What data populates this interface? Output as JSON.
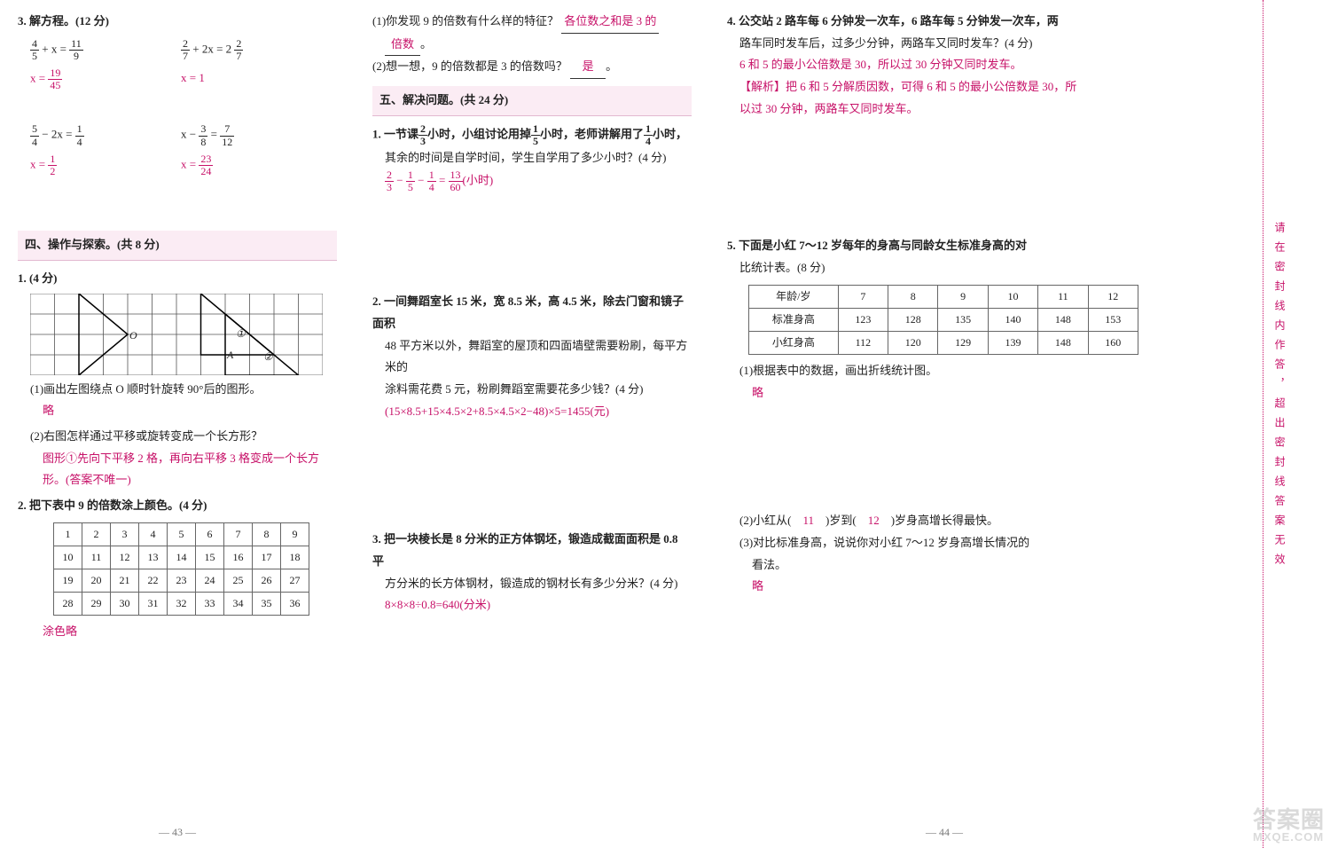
{
  "col1": {
    "q3_title": "3. 解方程。(12 分)",
    "eq1a": "4",
    "eq1b": "5",
    "eq1c": "+ x =",
    "eq1d": "11",
    "eq1e": "9",
    "eq1ans_l": "x =",
    "eq1ans_n": "19",
    "eq1ans_d": "45",
    "eq2a": "2",
    "eq2b": "7",
    "eq2c": " + 2x = 2 ",
    "eq2d": "2",
    "eq2e": "7",
    "eq2ans": "x = 1",
    "eq3a": "5",
    "eq3b": "4",
    "eq3c": " − 2x = ",
    "eq3d": "1",
    "eq3e": "4",
    "eq3ans_l": "x =",
    "eq3ans_n": "1",
    "eq3ans_d": "2",
    "eq4a": "x − ",
    "eq4b": "3",
    "eq4c": "8",
    "eq4d": " = ",
    "eq4e": "7",
    "eq4f": "12",
    "eq4ans_l": "x =",
    "eq4ans_n": "23",
    "eq4ans_d": "24",
    "sec4": "四、操作与探索。(共 8 分)",
    "q1pts": "1. (4 分)",
    "q1_1": "(1)画出左图绕点 O 顺时针旋转 90°后的图形。",
    "q1_1ans": "略",
    "q1_2": "(2)右图怎样通过平移或旋转变成一个长方形？",
    "q1_2ans_a": "图形①先向下平移 2 格，再向右平移 3 格变成一个长方",
    "q1_2ans_b": "形。(答案不唯一)",
    "q2": "2. 把下表中 9 的倍数涂上颜色。(4 分)",
    "t_rows": [
      [
        "1",
        "2",
        "3",
        "4",
        "5",
        "6",
        "7",
        "8",
        "9"
      ],
      [
        "10",
        "11",
        "12",
        "13",
        "14",
        "15",
        "16",
        "17",
        "18"
      ],
      [
        "19",
        "20",
        "21",
        "22",
        "23",
        "24",
        "25",
        "26",
        "27"
      ],
      [
        "28",
        "29",
        "30",
        "31",
        "32",
        "33",
        "34",
        "35",
        "36"
      ]
    ],
    "q2ans": "涂色略",
    "label_O": "O",
    "label_A": "A",
    "label_1": "①",
    "label_2": "②",
    "page": "— 43 —"
  },
  "col2": {
    "l1": "(1)你发现 9 的倍数有什么样的特征？",
    "l1ans": "各位数之和是 3 的",
    "l1ans2": "倍数",
    "l1dot": "。",
    "l2": "(2)想一想，9 的倍数都是 3 的倍数吗？",
    "l2ans": "是",
    "l2dot": "。",
    "sec5": "五、解决问题。(共 24 分)",
    "q1a": "1. 一节课",
    "q1frac1n": "2",
    "q1frac1d": "3",
    "q1b": "小时，小组讨论用掉",
    "q1frac2n": "1",
    "q1frac2d": "5",
    "q1c": "小时，老师讲解用了",
    "q1frac3n": "1",
    "q1frac3d": "4",
    "q1d": "小时，",
    "q1e": "其余的时间是自学时间，学生自学用了多少小时？(4 分)",
    "q1ans_a": "2",
    "q1ans_b": "3",
    "q1ans_c": "1",
    "q1ans_d": "5",
    "q1ans_e": "1",
    "q1ans_f": "4",
    "q1ans_g": "13",
    "q1ans_h": "60",
    "q1ans_t": "(小时)",
    "q2a": "2. 一间舞蹈室长 15 米，宽 8.5 米，高 4.5 米，除去门窗和镜子面积",
    "q2b": "48 平方米以外，舞蹈室的屋顶和四面墙壁需要粉刷，每平方米的",
    "q2c": "涂料需花费 5 元，粉刷舞蹈室需要花多少钱？(4 分)",
    "q2ans": "(15×8.5+15×4.5×2+8.5×4.5×2−48)×5=1455(元)",
    "q3a": "3. 把一块棱长是 8 分米的正方体钢坯，锻造成截面面积是 0.8 平",
    "q3b": "方分米的长方体钢材，锻造成的钢材长有多少分米？(4 分)",
    "q3ans": "8×8×8÷0.8=640(分米)"
  },
  "col3": {
    "q4a": "4. 公交站 2 路车每 6 分钟发一次车，6 路车每 5 分钟发一次车，两",
    "q4b": "路车同时发车后，过多少分钟，两路车又同时发车？(4 分)",
    "q4ans1": "6 和 5 的最小公倍数是 30，所以过 30 分钟又同时发车。",
    "q4ans2": "【解析】把 6 和 5 分解质因数，可得 6 和 5 的最小公倍数是 30，所",
    "q4ans3": "以过 30 分钟，两路车又同时发车。",
    "q5a": "5. 下面是小红 7～12 岁每年的身高与同龄女生标准身高的对",
    "q5b": "比统计表。(8 分)",
    "t5_h": [
      "年龄/岁",
      "7",
      "8",
      "9",
      "10",
      "11",
      "12"
    ],
    "t5_r1": [
      "标准身高",
      "123",
      "128",
      "135",
      "140",
      "148",
      "153"
    ],
    "t5_r2": [
      "小红身高",
      "112",
      "120",
      "129",
      "139",
      "148",
      "160"
    ],
    "q5_1": "(1)根据表中的数据，画出折线统计图。",
    "q5_1ans": "略",
    "q5_2a": "(2)小红从(　",
    "q5_2b": "11",
    "q5_2c": "　)岁到(　",
    "q5_2d": "12",
    "q5_2e": "　)岁身高增长得最快。",
    "q5_3a": "(3)对比标准身高，说说你对小红 7～12 岁身高增长情况的",
    "q5_3b": "看法。",
    "q5_3ans": "略",
    "page": "— 44 —"
  },
  "gutter": {
    "vtext": "请在密封线内作答，超出密封线答案无效"
  },
  "wm1": "答案圈",
  "wm2": "MXQE.COM"
}
